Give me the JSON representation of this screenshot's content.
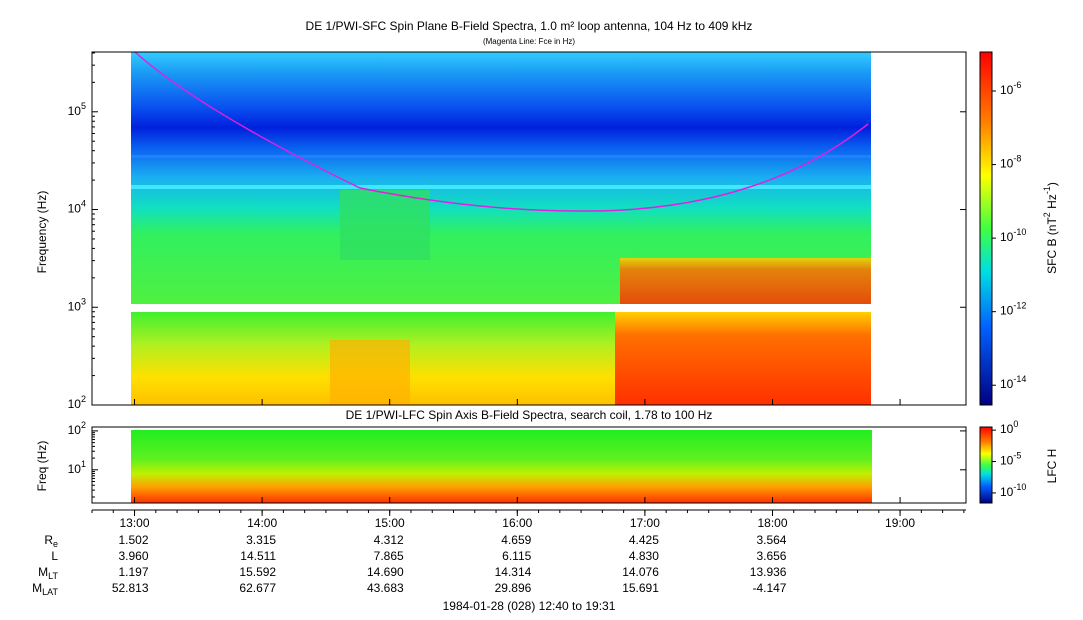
{
  "chart_data": [
    {
      "type": "spectrogram",
      "title": "DE 1/PWI-SFC  Spin Plane B-Field Spectra, 1.0 m² loop antenna, 104 Hz to 409 kHz",
      "subtitle": "(Magenta Line: Fce in Hz)",
      "ylabel": "Frequency (Hz)",
      "ylim": [
        100,
        409000
      ],
      "log_y": true,
      "yticks": [
        {
          "value": 100,
          "label": "10^2"
        },
        {
          "value": 1000,
          "label": "10^3"
        },
        {
          "value": 10000,
          "label": "10^4"
        },
        {
          "value": 100000,
          "label": "10^5"
        }
      ],
      "colorbar_label": "SFC B (nT^2 Hz^-1)",
      "clim": [
        2.9e-15,
        1.15e-05
      ],
      "cticks": [
        {
          "value": 1e-06,
          "label": "10^-6"
        },
        {
          "value": 1e-08,
          "label": "10^-8"
        },
        {
          "value": 1e-10,
          "label": "10^-10"
        },
        {
          "value": 1e-12,
          "label": "10^-12"
        },
        {
          "value": 1e-14,
          "label": "10^-14"
        }
      ]
    },
    {
      "type": "spectrogram",
      "title": "DE 1/PWI-LFC  Spin Axis B-Field Spectra, search coil, 1.78 to 100 Hz",
      "ylabel": "Freq (Hz)",
      "ylim": [
        1.4,
        126
      ],
      "log_y": true,
      "yticks": [
        {
          "value": 10,
          "label": "10^1"
        },
        {
          "value": 100,
          "label": "10^2"
        }
      ],
      "colorbar_label": "LFC H",
      "clim": [
        2.5e-12,
        3.16
      ],
      "cticks": [
        {
          "value": 1,
          "label": "10^0"
        },
        {
          "value": 1e-05,
          "label": "10^-5"
        },
        {
          "value": 1e-10,
          "label": "10^-10"
        }
      ]
    }
  ],
  "xlim": [
    760,
    1171
  ],
  "xticks": [
    {
      "value": 780,
      "label": "13:00"
    },
    {
      "value": 840,
      "label": "14:00"
    },
    {
      "value": 900,
      "label": "15:00"
    },
    {
      "value": 960,
      "label": "16:00"
    },
    {
      "value": 1020,
      "label": "17:00"
    },
    {
      "value": 1080,
      "label": "18:00"
    },
    {
      "value": 1140,
      "label": "19:00"
    }
  ],
  "ephemeris": [
    {
      "label": "R_e",
      "values": [
        "1.502",
        "3.315",
        "4.312",
        "4.659",
        "4.425",
        "3.564"
      ]
    },
    {
      "label": "L",
      "values": [
        "3.960",
        "14.511",
        "7.865",
        "6.115",
        "4.830",
        "3.656"
      ]
    },
    {
      "label": "M_LT",
      "values": [
        "1.197",
        "15.592",
        "14.690",
        "14.314",
        "14.076",
        "13.936"
      ]
    },
    {
      "label": "M_LAT",
      "values": [
        "52.813",
        "62.677",
        "43.683",
        "29.896",
        "15.691",
        "-4.147"
      ]
    }
  ],
  "footer": "1984-01-28 (028) 12:40 to 19:31"
}
